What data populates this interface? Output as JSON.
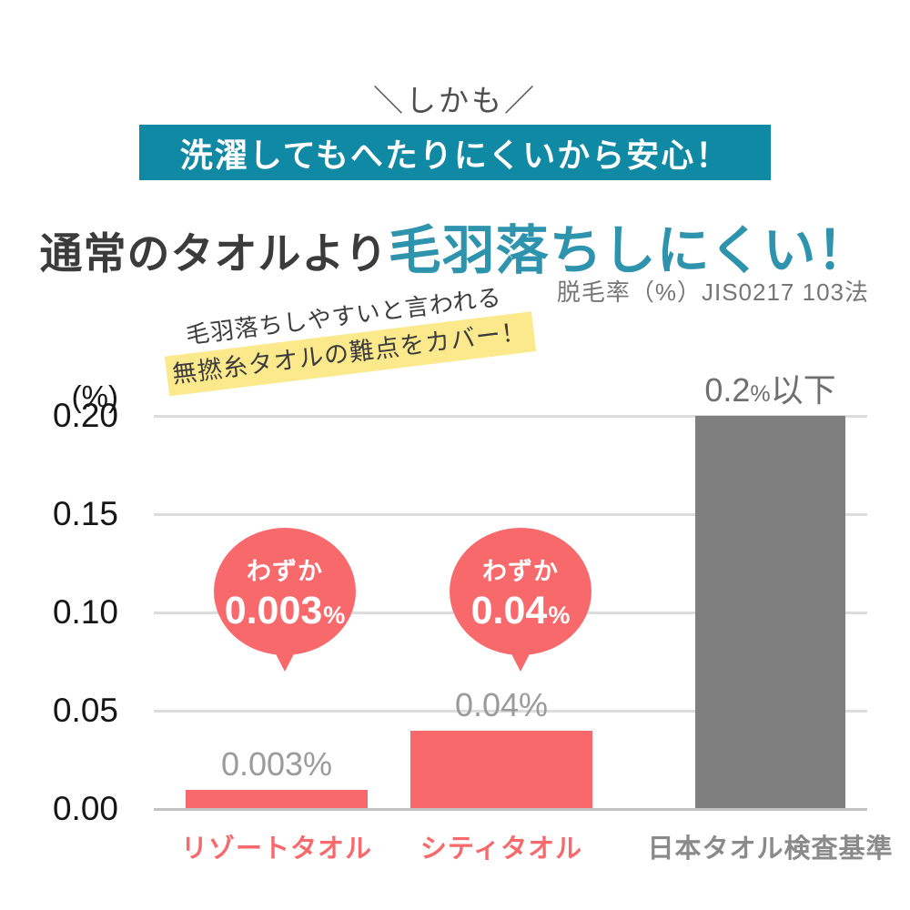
{
  "header": {
    "kicker": "＼しかも／",
    "banner_text": "洗濯してもへたりにくいから安心！",
    "title_normal": "通常のタオルより",
    "title_accent": "毛羽落ちしにくい！",
    "method_note": "脱毛率（%）JIS0217 103法",
    "handwritten_line1": "毛羽落ちしやすいと言われる",
    "handwritten_line2": "無撚糸タオルの難点をカバー！"
  },
  "colors": {
    "teal_banner": "#0f89a4",
    "teal_accent": "#2e93ad",
    "coral": "#f8696c",
    "bar_gray": "#7f7f7f",
    "yellow_highlight": "#fce98c",
    "grid": "#dcdcdc",
    "axis": "#c3c3c3",
    "value_label_gray": "#9b9b9b",
    "standard_label_gray": "#6f6f6f",
    "category_gray": "#8a8a8a"
  },
  "chart_data": {
    "type": "bar",
    "title": "通常のタオルより毛羽落ちしにくい！",
    "subtitle": "脱毛率（%）JIS0217 103法",
    "unit_label": "(%)",
    "ylabel": "脱毛率 (%)",
    "ylim": [
      0,
      0.21
    ],
    "yticks": [
      0,
      0.05,
      0.1,
      0.15,
      0.2
    ],
    "ytick_labels": [
      "0.00",
      "0.05",
      "0.10",
      "0.15",
      "0.20"
    ],
    "grid": true,
    "legend": false,
    "categories": [
      "リゾートタオル",
      "シティタオル",
      "日本タオル検査基準"
    ],
    "values": [
      0.003,
      0.04,
      0.2
    ],
    "bars": [
      {
        "category": "リゾートタオル",
        "value": 0.003,
        "value_label_segments": [
          {
            "text": "0.003%"
          }
        ],
        "bar_color": "#f8696c",
        "value_label_color": "#9b9b9b",
        "category_color": "#f8696c"
      },
      {
        "category": "シティタオル",
        "value": 0.04,
        "value_label_segments": [
          {
            "text": "0.04%"
          }
        ],
        "bar_color": "#f8696c",
        "value_label_color": "#9b9b9b",
        "category_color": "#f8696c"
      },
      {
        "category": "日本タオル検査基準",
        "value": 0.2,
        "value_label_segments": [
          {
            "text": "0.2"
          },
          {
            "text": "%",
            "small": true
          },
          {
            "text": "以下"
          }
        ],
        "bar_color": "#7f7f7f",
        "value_label_color": "#6f6f6f",
        "category_color": "#8a8a8a"
      }
    ],
    "callouts": [
      {
        "bar_index": 0,
        "prefix": "わずか",
        "value": "0.003",
        "unit": "%"
      },
      {
        "bar_index": 1,
        "prefix": "わずか",
        "value": "0.04",
        "unit": "%"
      }
    ]
  }
}
